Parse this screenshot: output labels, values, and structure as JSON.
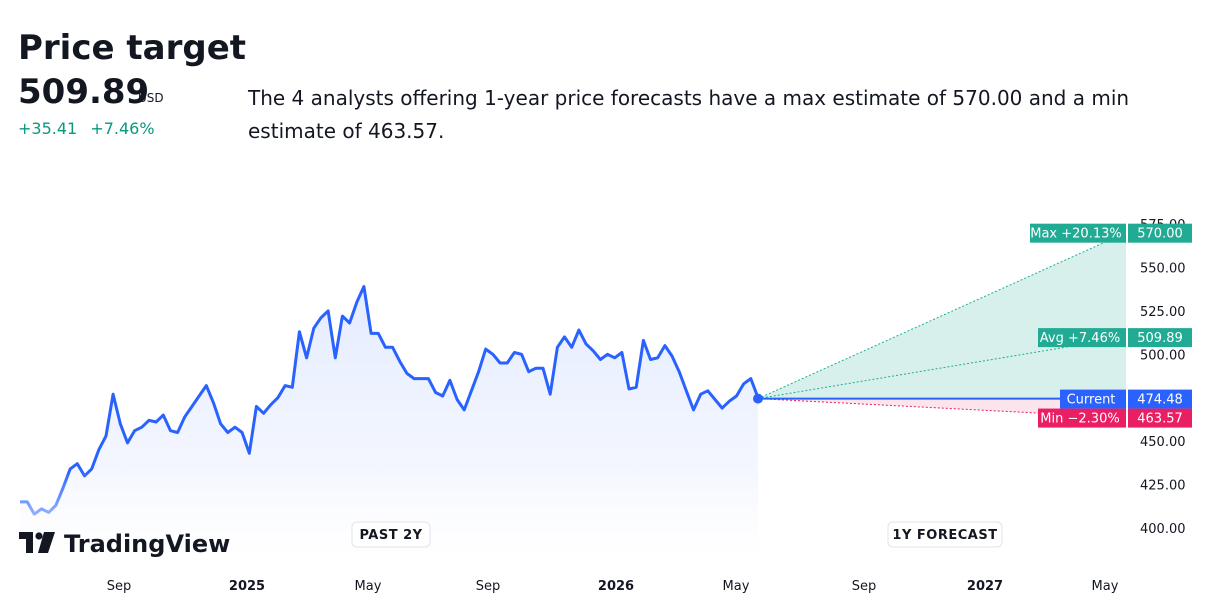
{
  "header": {
    "title": "Price target",
    "price": "509.89",
    "currency": "USD",
    "change_abs": "+35.41",
    "change_pct": "+7.46%",
    "description": "The 4 analysts offering 1-year price forecasts have a max estimate of 570.00 and a min estimate of 463.57."
  },
  "colors": {
    "line": "#2962ff",
    "max": "#22ab94",
    "current": "#2962ff",
    "min": "#e91e63",
    "up_text": "#089981"
  },
  "chart_data": {
    "type": "line",
    "x_axis_labels": [
      "Sep",
      "2025",
      "May",
      "Sep",
      "2026",
      "May",
      "Sep",
      "2027",
      "May"
    ],
    "x_axis_bold": [
      "2025",
      "2026",
      "2027"
    ],
    "y_ticks": [
      400,
      425,
      450,
      475,
      500,
      525,
      550,
      575
    ],
    "y_tick_labels": [
      "400.00",
      "425.00",
      "450.00",
      "475.00",
      "500.00",
      "525.00",
      "550.00",
      "575.00"
    ],
    "ylim": [
      395,
      578
    ],
    "period_labels": {
      "past": "PAST 2Y",
      "forecast": "1Y FORECAST"
    },
    "series": [
      {
        "values": [
          415,
          415,
          408,
          411,
          409,
          413,
          423,
          434,
          437,
          430,
          434,
          445,
          453,
          477,
          460,
          449,
          456,
          458,
          462,
          461,
          465,
          456,
          455,
          464,
          470,
          476,
          482,
          472,
          460,
          455,
          458,
          455,
          443,
          470,
          466,
          471,
          475,
          482,
          481,
          513,
          498,
          515,
          521,
          525,
          498,
          522,
          518,
          530,
          539,
          512,
          512,
          504,
          504,
          496,
          489,
          486,
          486,
          486,
          478,
          476,
          485,
          474,
          468,
          479,
          490,
          503,
          500,
          495,
          495,
          501,
          500,
          490,
          492,
          492,
          477,
          504,
          510,
          504,
          514,
          506,
          502,
          497,
          500,
          498,
          501,
          480,
          481,
          508,
          497,
          498,
          505,
          499,
          490,
          479,
          468,
          477,
          479,
          474,
          469,
          473,
          476,
          483,
          486,
          475
        ]
      }
    ],
    "forecast": {
      "current": {
        "label": "Current",
        "value": 474.48,
        "text": "474.48"
      },
      "max": {
        "label": "Max +20.13%",
        "value": 570.0,
        "text": "570.00"
      },
      "avg": {
        "label": "Avg +7.46%",
        "value": 509.89,
        "text": "509.89"
      },
      "min": {
        "label": "Min −2.30%",
        "value": 463.57,
        "text": "463.57"
      }
    }
  },
  "brand": {
    "name": "TradingView"
  }
}
